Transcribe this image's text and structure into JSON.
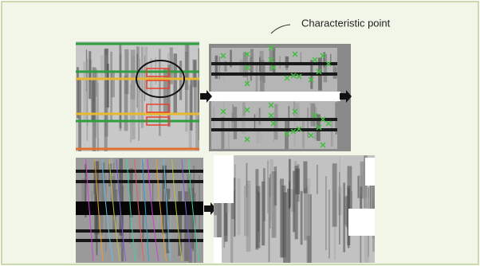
{
  "annotation": "Characteristic point"
}
